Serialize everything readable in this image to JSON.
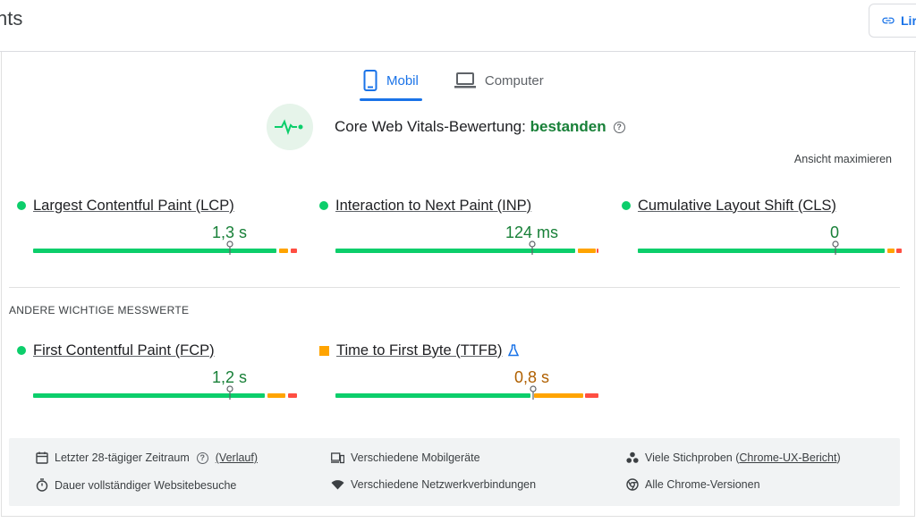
{
  "header": {
    "title": "nts",
    "share_label": "Lir"
  },
  "tabs": [
    {
      "label": "Mobil",
      "icon": "phone-icon",
      "active": true
    },
    {
      "label": "Computer",
      "icon": "laptop-icon",
      "active": false
    }
  ],
  "assessment": {
    "label": "Core Web Vitals-Bewertung:",
    "status": "bestanden",
    "icon": "pulse-icon"
  },
  "maximize_label": "Ansicht maximieren",
  "core_metrics": [
    {
      "name": "Largest Contentful Paint (LCP)",
      "value": "1,3 s",
      "rating": "good",
      "indicator": "green-dot"
    },
    {
      "name": "Interaction to Next Paint (INP)",
      "value": "124 ms",
      "rating": "good",
      "indicator": "green-dot"
    },
    {
      "name": "Cumulative Layout Shift (CLS)",
      "value": "0",
      "rating": "good",
      "indicator": "green-dot"
    }
  ],
  "other_section_label": "ANDERE WICHTIGE MESSWERTE",
  "other_metrics": [
    {
      "name": "First Contentful Paint (FCP)",
      "value": "1,2 s",
      "rating": "good",
      "indicator": "green-dot"
    },
    {
      "name": "Time to First Byte (TTFB)",
      "value": "0,8 s",
      "rating": "needs-improvement",
      "indicator": "orange-square",
      "experimental_icon": "flask-icon"
    }
  ],
  "footer": {
    "period": {
      "text": "Letzter 28-tägiger Zeitraum",
      "link": "(Verlauf)",
      "icon": "calendar-icon"
    },
    "duration": {
      "text": "Dauer vollständiger Websitebesuche",
      "icon": "timer-icon"
    },
    "devices": {
      "text": "Verschiedene Mobilgeräte",
      "icon": "devices-icon"
    },
    "network": {
      "text": "Verschiedene Netzwerkverbindungen",
      "icon": "wifi-icon"
    },
    "samples": {
      "text_before": "Viele Stichproben (",
      "link": "Chrome-UX-Bericht",
      "text_after": ")",
      "icon": "samples-icon"
    },
    "versions": {
      "text": "Alle Chrome-Versionen",
      "icon": "chrome-icon"
    }
  },
  "colors": {
    "good": "#0cce6b",
    "average": "#ffa400",
    "poor": "#ff4e42",
    "accent": "#1a73e8",
    "pass_text": "#188038"
  }
}
